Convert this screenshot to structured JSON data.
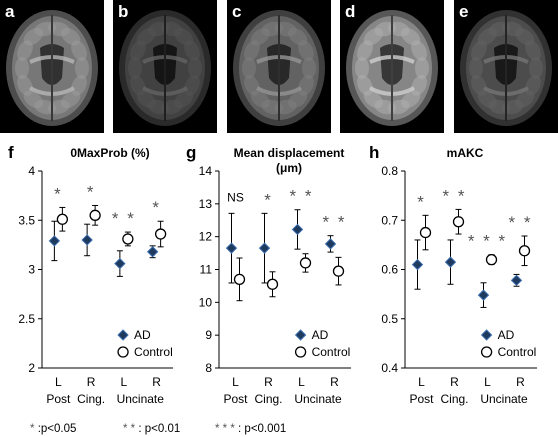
{
  "images": [
    {
      "letter": "a"
    },
    {
      "letter": "b"
    },
    {
      "letter": "c"
    },
    {
      "letter": "d"
    },
    {
      "letter": "e"
    }
  ],
  "chart_data": [
    {
      "type": "scatter",
      "letter": "f",
      "title": "0MaxProb (%)",
      "ylim": [
        2,
        4
      ],
      "yticks": [
        "2",
        "2.5",
        "3",
        "3.5",
        "4"
      ],
      "categories": [
        "L",
        "R",
        "L",
        "R"
      ],
      "groups": [
        {
          "label": "Post"
        },
        {
          "label": "Cing."
        },
        {
          "label": "Uncinate"
        }
      ],
      "series": [
        {
          "name": "AD",
          "marker": "diamond",
          "values": [
            3.29,
            3.3,
            3.06,
            3.18
          ],
          "err": [
            0.2,
            0.16,
            0.13,
            0.06
          ]
        },
        {
          "name": "Control",
          "marker": "circle",
          "values": [
            3.51,
            3.55,
            3.31,
            3.36
          ],
          "err": [
            0.12,
            0.1,
            0.07,
            0.13
          ]
        }
      ],
      "significance": [
        "*",
        "*",
        "**",
        "*"
      ],
      "legend": "lower-right"
    },
    {
      "type": "scatter",
      "letter": "g",
      "title": "Mean displacement (μm)",
      "ylim": [
        8,
        14
      ],
      "yticks": [
        "8",
        "9",
        "10",
        "11",
        "12",
        "13",
        "14"
      ],
      "categories": [
        "L",
        "R",
        "L",
        "R"
      ],
      "groups": [
        {
          "label": "Post"
        },
        {
          "label": "Cing."
        },
        {
          "label": "Uncinate"
        }
      ],
      "series": [
        {
          "name": "AD",
          "marker": "diamond",
          "values": [
            11.65,
            11.65,
            12.22,
            11.78
          ],
          "err": [
            1.06,
            1.06,
            0.6,
            0.25
          ]
        },
        {
          "name": "Control",
          "marker": "circle",
          "values": [
            10.7,
            10.55,
            11.2,
            10.95
          ],
          "err": [
            0.65,
            0.38,
            0.28,
            0.42
          ]
        }
      ],
      "significance": [
        "NS",
        "*",
        "**",
        "**"
      ],
      "legend": "lower-right"
    },
    {
      "type": "scatter",
      "letter": "h",
      "title": "mAKC",
      "ylim": [
        0.4,
        0.8
      ],
      "yticks": [
        "0.4",
        "0.5",
        "0.6",
        "0.7",
        "0.8"
      ],
      "categories": [
        "L",
        "R",
        "L",
        "R"
      ],
      "groups": [
        {
          "label": "Post"
        },
        {
          "label": "Cing."
        },
        {
          "label": "Uncinate"
        }
      ],
      "series": [
        {
          "name": "AD",
          "marker": "diamond",
          "values": [
            0.61,
            0.615,
            0.548,
            0.578
          ],
          "err": [
            0.05,
            0.045,
            0.025,
            0.012
          ]
        },
        {
          "name": "Control",
          "marker": "circle",
          "values": [
            0.675,
            0.697,
            0.62,
            0.638
          ],
          "err": [
            0.035,
            0.025,
            0.01,
            0.03
          ]
        }
      ],
      "significance": [
        "*",
        "**",
        "***",
        "**"
      ],
      "legend": "lower-right"
    }
  ],
  "footnotes": [
    {
      "marks": "*",
      "text": ":p<0.05"
    },
    {
      "marks": "* *",
      "text": ": p<0.01"
    },
    {
      "marks": "* * *",
      "text": ": p<0.001"
    }
  ],
  "colors": {
    "ad_fill": "#1f3a5f",
    "ad_stroke": "#3d6fb0",
    "control": "#000000",
    "stars": "#555555"
  }
}
